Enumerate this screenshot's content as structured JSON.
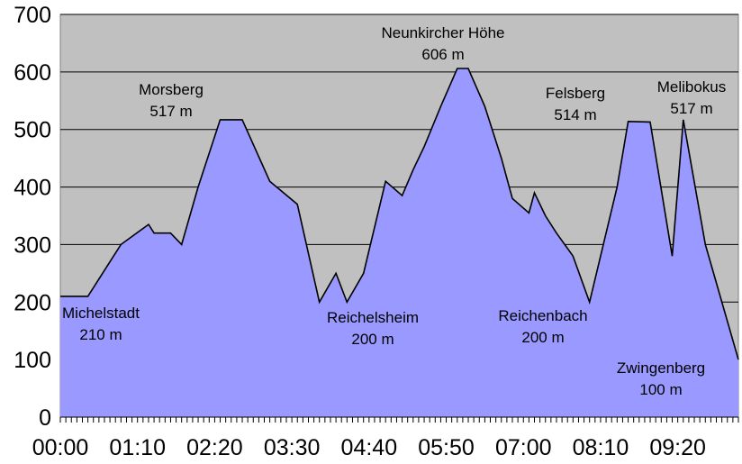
{
  "chart_data": {
    "type": "area",
    "title": "",
    "xlabel": "",
    "ylabel": "",
    "ylim": [
      0,
      700
    ],
    "yticks": [
      0,
      100,
      200,
      300,
      400,
      500,
      600,
      700
    ],
    "xlim": [
      "00:00",
      "10:15"
    ],
    "xtick_labels": [
      "00:00",
      "01:10",
      "02:20",
      "03:30",
      "04:40",
      "05:50",
      "07:00",
      "08:10",
      "09:20"
    ],
    "grid": "horizontal",
    "plot_background": "#c0c0c0",
    "fill_color": "#9999ff",
    "line_color": "#000000",
    "series": [
      {
        "x": [
          "00:00",
          "00:25",
          "00:55",
          "01:20",
          "01:25",
          "01:40",
          "01:50",
          "02:05",
          "02:25",
          "02:45",
          "03:10",
          "03:35",
          "03:55",
          "04:10",
          "04:20",
          "04:35",
          "04:55",
          "05:10",
          "05:20",
          "05:30",
          "05:45",
          "06:00",
          "06:10",
          "06:25",
          "06:40",
          "06:50",
          "07:05",
          "07:10",
          "07:20",
          "07:30",
          "07:45",
          "08:00",
          "08:25",
          "08:35",
          "08:55",
          "09:15",
          "09:25",
          "09:45",
          "10:15"
        ],
        "y": [
          210,
          210,
          300,
          335,
          320,
          320,
          300,
          400,
          517,
          517,
          410,
          370,
          200,
          250,
          200,
          250,
          410,
          385,
          430,
          470,
          540,
          606,
          606,
          540,
          450,
          380,
          355,
          390,
          350,
          320,
          280,
          200,
          400,
          514,
          513,
          280,
          517,
          300,
          100
        ]
      }
    ],
    "annotations": [
      {
        "name": "Michelstadt",
        "value": "210 m",
        "x": "00:25",
        "y": 210
      },
      {
        "name": "Morsberg",
        "value": "517 m",
        "x": "02:35",
        "y": 517
      },
      {
        "name": "Reichelsheim",
        "value": "200 m",
        "x": "03:55",
        "y": 200
      },
      {
        "name": "Neunkircher Höhe",
        "value": "606 m",
        "x": "06:05",
        "y": 606
      },
      {
        "name": "Reichenbach",
        "value": "200 m",
        "x": "07:45",
        "y": 200
      },
      {
        "name": "Felsberg",
        "value": "514 m",
        "x": "08:40",
        "y": 514
      },
      {
        "name": "Melibokus",
        "value": "517 m",
        "x": "09:25",
        "y": 517
      },
      {
        "name": "Zwingenberg",
        "value": "100 m",
        "x": "10:15",
        "y": 100
      }
    ]
  }
}
